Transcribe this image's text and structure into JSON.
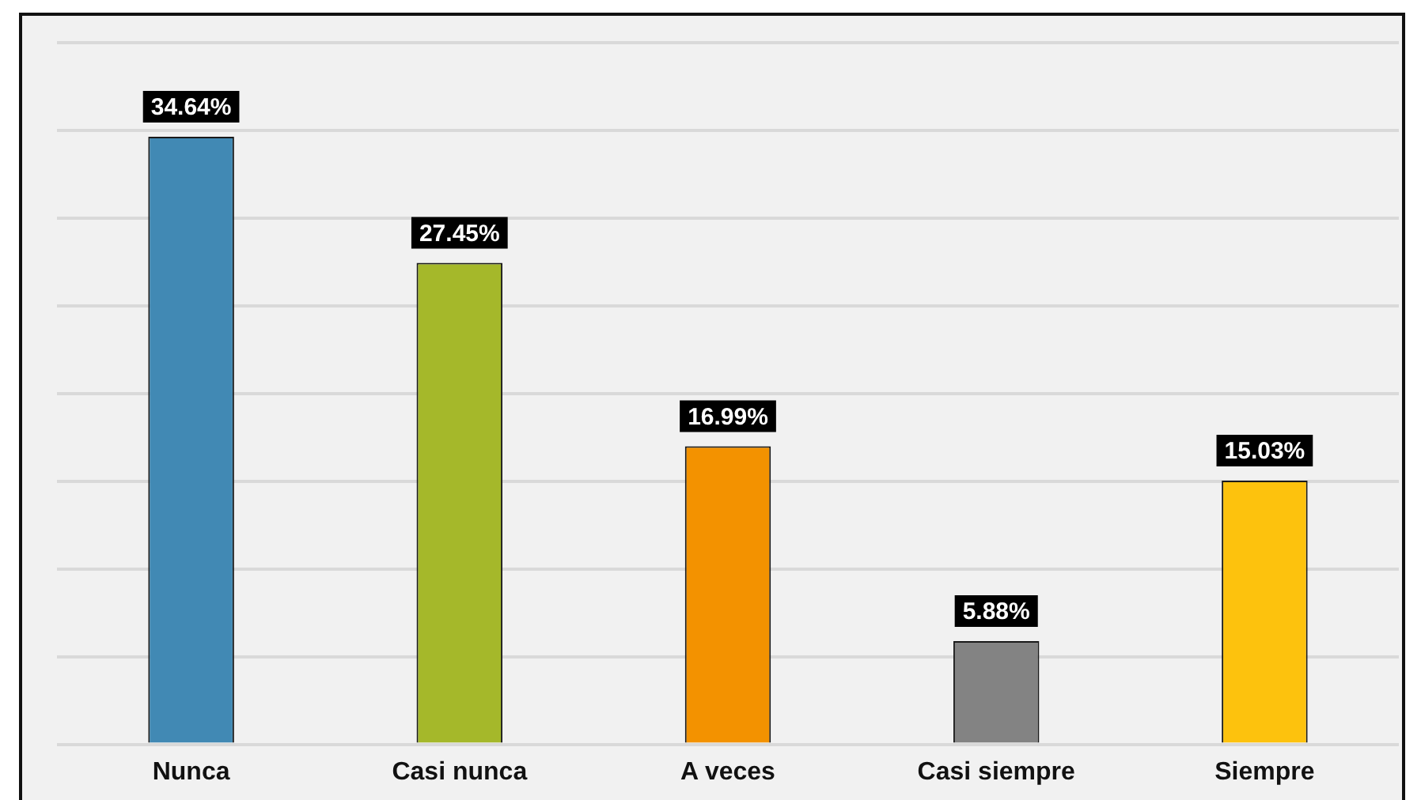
{
  "chart_data": {
    "type": "bar",
    "categories": [
      "Nunca",
      "Casi nunca",
      "A veces",
      "Casi siempre",
      "Siempre"
    ],
    "values": [
      34.64,
      27.45,
      16.99,
      5.88,
      15.03
    ],
    "colors": [
      "#4189b4",
      "#a5b82a",
      "#f39200",
      "#838383",
      "#fdc20d"
    ],
    "value_labels": [
      "34.64%",
      "27.45%",
      "16.99%",
      "5.88%",
      "15.03%"
    ],
    "ylim": [
      0,
      40
    ],
    "grid": "y",
    "tick_labels": "x",
    "legend": false
  }
}
